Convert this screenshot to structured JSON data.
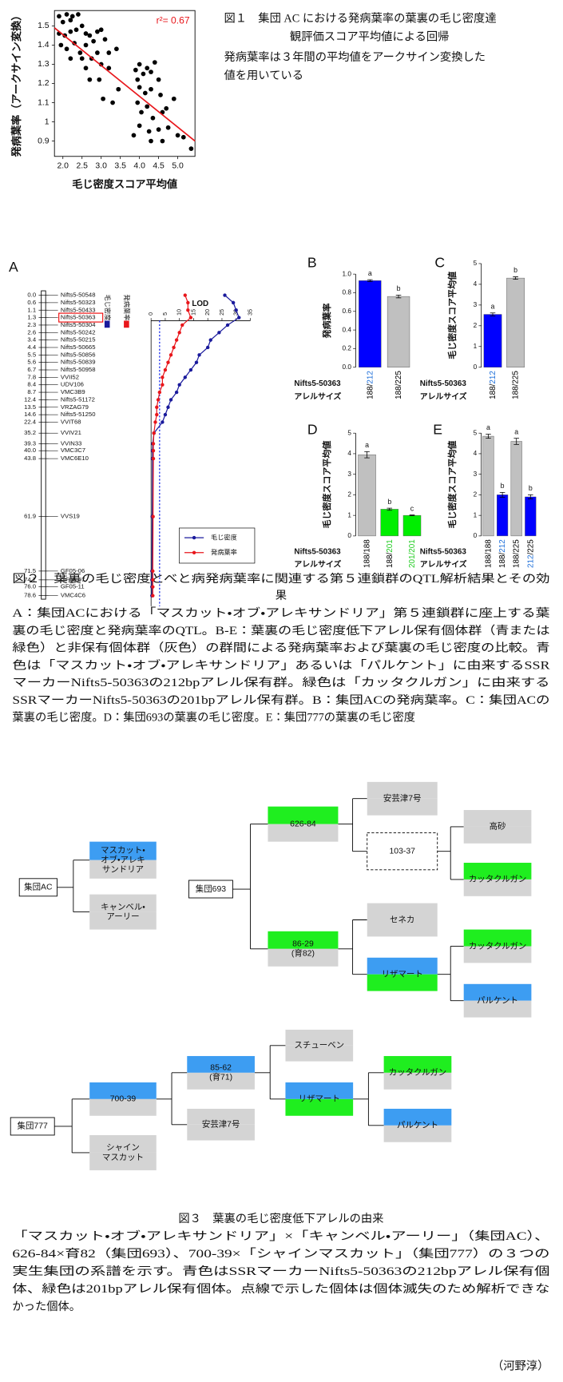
{
  "figure1": {
    "chart_data": {
      "type": "scatter",
      "xlabel": "毛じ密度スコア平均値",
      "ylabel": "発病葉率（アークサイン変換）",
      "x": [
        1.9,
        2.0,
        2.1,
        2.2,
        2.25,
        2.4,
        1.9,
        2.05,
        2.2,
        2.35,
        2.5,
        2.6,
        2.7,
        2.9,
        3.0,
        1.95,
        2.1,
        2.3,
        2.45,
        2.6,
        2.8,
        3.1,
        2.2,
        2.5,
        2.75,
        2.9,
        3.2,
        3.4,
        2.6,
        3.0,
        2.7,
        2.95,
        3.2,
        3.05,
        3.45,
        3.9,
        3.95,
        4.0,
        4.1,
        4.2,
        4.3,
        4.4,
        4.5,
        4.0,
        4.15,
        4.3,
        4.55,
        3.95,
        4.05,
        4.2,
        4.35,
        4.6,
        4.7,
        4.0,
        4.25,
        4.5,
        4.75,
        3.85,
        4.3,
        4.6,
        5.0,
        5.15,
        5.35,
        3.3,
        4.9
      ],
      "y": [
        1.55,
        1.52,
        1.56,
        1.53,
        1.55,
        1.56,
        1.46,
        1.45,
        1.47,
        1.48,
        1.5,
        1.46,
        1.45,
        1.47,
        1.48,
        1.4,
        1.38,
        1.41,
        1.36,
        1.4,
        1.42,
        1.43,
        1.33,
        1.33,
        1.33,
        1.36,
        1.36,
        1.38,
        1.28,
        1.3,
        1.22,
        1.22,
        1.28,
        1.12,
        1.17,
        1.27,
        1.22,
        1.3,
        1.25,
        1.28,
        1.26,
        1.31,
        1.22,
        1.18,
        1.15,
        1.17,
        1.14,
        1.1,
        1.05,
        1.08,
        1.02,
        1.05,
        1.07,
        0.98,
        0.95,
        0.96,
        0.97,
        0.93,
        0.9,
        0.9,
        0.93,
        0.92,
        0.86,
        1.1,
        1.12
      ],
      "color": "#000000",
      "fit": {
        "x": [
          1.78,
          5.45
        ],
        "y": [
          1.49,
          0.9
        ],
        "color": "#e8161b",
        "label": "r²= 0.67"
      },
      "xlim": [
        1.78,
        5.45
      ],
      "ylim": [
        0.82,
        1.58
      ],
      "xticks": [
        {
          "value": 2,
          "label": "2.0"
        },
        2.5,
        {
          "value": 3,
          "label": "3.0"
        },
        3.5,
        {
          "value": 4,
          "label": "4.0"
        },
        4.5,
        {
          "value": 5,
          "label": "5.0"
        }
      ],
      "yticks": [
        0.9,
        1,
        1.1,
        1.2,
        1.3,
        1.4,
        1.5
      ]
    },
    "caption": {
      "title": [
        "図１　集団 AC における発病葉率の葉裏の毛じ密度達",
        "観評価スコア平均値による回帰"
      ],
      "body": [
        "発病葉率は３年間の平均値をアークサイン変換した",
        "値を用いている"
      ]
    }
  },
  "figure2": {
    "panel_a": {
      "label": "A",
      "chart_data": {
        "type": "lod",
        "title": "LOD",
        "markers": [
          {
            "position": "0.0",
            "name": "Nifts5-50548"
          },
          {
            "position": "0.6",
            "name": "Nifts5-50323"
          },
          {
            "position": "1.1",
            "name": "Nifts5-50433"
          },
          {
            "position": "1.3",
            "name": "Nifts5-50363",
            "boxed": true
          },
          {
            "position": "2.3",
            "name": "Nifts5-50304"
          },
          {
            "position": "2.6",
            "name": "Nifts5-50242"
          },
          {
            "position": "3.4",
            "name": "Nifts5-50215"
          },
          {
            "position": "4.4",
            "name": "Nifts5-50665"
          },
          {
            "position": "5.5",
            "name": "Nifts5-50856"
          },
          {
            "position": "5.6",
            "name": "Nifts5-50839"
          },
          {
            "position": "6.7",
            "name": "Nifts5-50958"
          },
          {
            "position": "7.8",
            "name": "VVII52"
          },
          {
            "position": "8.4",
            "name": "UDV106"
          },
          {
            "position": "8.7",
            "name": "VMC3B9"
          },
          {
            "position": "12.4",
            "name": "Nifts5-51172"
          },
          {
            "position": "13.5",
            "name": "VRZAG79"
          },
          {
            "position": "14.6",
            "name": "Nifts5-51250"
          },
          {
            "position": "22.4",
            "name": "VVIT68"
          },
          {
            "position": "35.2",
            "name": "VVIV21"
          },
          {
            "position": "39.3",
            "name": "VVIN33"
          },
          {
            "position": "40.0",
            "name": "VMC3C7"
          },
          {
            "position": "43.8",
            "name": "VMC6E10"
          },
          {
            "position": "61.9",
            "name": "VVS19"
          },
          {
            "position": "71.5",
            "name": "GF05-06"
          },
          {
            "position": "74.7",
            "name": "GF05-07"
          },
          {
            "position": "76.0",
            "name": "GF05-11"
          },
          {
            "position": "78.6",
            "name": "VMC4C6"
          }
        ],
        "series": [
          {
            "name": "毛じ密度",
            "color": "#1a1a9c",
            "values": [
              26,
              29,
              30,
              31,
              27,
              24,
              21,
              20,
              17,
              16,
              14,
              12,
              10,
              9,
              7,
              6,
              5,
              4,
              1,
              0.6,
              0.5,
              0.5,
              0.4,
              0.3,
              0.3,
              0.3,
              0.3
            ]
          },
          {
            "name": "発病葉率",
            "color": "#e8161b",
            "values": [
              12,
              13,
              13,
              14,
              11,
              10,
              9,
              8,
              7,
              6,
              5,
              4,
              4,
              3,
              2.5,
              2,
              2,
              1.5,
              1,
              0.8,
              0.8,
              0.8,
              0.7,
              0.6,
              0.6,
              0.6,
              0.6
            ]
          }
        ],
        "threshold": 3,
        "threshold_color": "#2233ee",
        "xlim": [
          0,
          35
        ],
        "xticks": [
          0,
          5,
          10,
          15,
          20,
          25,
          30,
          35
        ]
      }
    },
    "panels": [
      {
        "label": "B",
        "chart_data": {
          "type": "bar",
          "ylabel": "発病葉率",
          "categories": [
            [
              "188/",
              "212"
            ],
            [
              "188/225"
            ]
          ],
          "category_colors": [
            [
              "#000000",
              "#1e6fd9"
            ],
            [
              "#000000"
            ]
          ],
          "values": [
            0.93,
            0.76
          ],
          "errors": [
            0.01,
            0.015
          ],
          "colors": [
            "#0000ff",
            "#c0c0c0"
          ],
          "letters": [
            "a",
            "b"
          ],
          "ylim": [
            0,
            1
          ],
          "yticks": [
            {
              "value": 0,
              "label": "0.0"
            },
            0.2,
            0.4,
            0.6,
            0.8,
            {
              "value": 1,
              "label": "1.0"
            }
          ],
          "marker_label": "Nifts5-50363",
          "allele_label": "アレルサイズ"
        }
      },
      {
        "label": "C",
        "chart_data": {
          "type": "bar",
          "ylabel": "毛じ密度スコア平均値",
          "categories": [
            [
              "188/",
              "212"
            ],
            [
              "188/225"
            ]
          ],
          "category_colors": [
            [
              "#000000",
              "#1e6fd9"
            ],
            [
              "#000000"
            ]
          ],
          "values": [
            2.55,
            4.3
          ],
          "errors": [
            0.07,
            0.06
          ],
          "colors": [
            "#0000ff",
            "#c0c0c0"
          ],
          "letters": [
            "a",
            "b"
          ],
          "ylim": [
            0,
            5
          ],
          "yticks": [
            0,
            1,
            2,
            3,
            4,
            5
          ],
          "marker_label": "Nifts5-50363",
          "allele_label": "アレルサイズ"
        }
      },
      {
        "label": "D",
        "chart_data": {
          "type": "bar",
          "ylabel": "毛じ密度スコア平均値",
          "categories": [
            [
              "188/188"
            ],
            [
              "188/",
              "201"
            ],
            [
              "201/201"
            ]
          ],
          "category_colors": [
            [
              "#000000"
            ],
            [
              "#000000",
              "#22cc22"
            ],
            [
              "#22cc22"
            ]
          ],
          "values": [
            3.95,
            1.3,
            1.0
          ],
          "errors": [
            0.15,
            0.05,
            0.02
          ],
          "colors": [
            "#c0c0c0",
            "#00ee00",
            "#00ee00"
          ],
          "letters": [
            "a",
            "b",
            "c"
          ],
          "ylim": [
            0,
            5
          ],
          "yticks": [
            0,
            1,
            2,
            3,
            4,
            5
          ],
          "marker_label": "Nifts5-50363",
          "allele_label": "アレルサイズ"
        }
      },
      {
        "label": "E",
        "chart_data": {
          "type": "bar",
          "ylabel": "毛じ密度スコア平均値",
          "categories": [
            [
              "188/188"
            ],
            [
              "188/",
              "212"
            ],
            [
              "188/225"
            ],
            [
              "212",
              "/225"
            ]
          ],
          "category_colors": [
            [
              "#000000"
            ],
            [
              "#000000",
              "#1e6fd9"
            ],
            [
              "#000000"
            ],
            [
              "#1e6fd9",
              "#000000"
            ]
          ],
          "values": [
            4.85,
            2.0,
            4.6,
            1.9
          ],
          "errors": [
            0.1,
            0.12,
            0.15,
            0.1
          ],
          "colors": [
            "#c0c0c0",
            "#0000ff",
            "#c0c0c0",
            "#0000ff"
          ],
          "letters": [
            "a",
            "b",
            "a",
            "b"
          ],
          "ylim": [
            0,
            5
          ],
          "yticks": [
            0,
            1,
            2,
            3,
            4,
            5
          ],
          "marker_label": "Nifts5-50363",
          "allele_label": "アレルサイズ"
        }
      }
    ],
    "caption": {
      "title": [
        "図２　葉裏の毛じ密度とべと病発病葉率に関連する第５連鎖群のQTL解析結果とその効",
        "果"
      ],
      "body": [
        "A：集団ACにおける「マスカット・オブ・アレキサンドリア」第５連鎖群に座上する葉",
        "裏の毛じ密度と発病葉率のQTL。B-E：葉裏の毛じ密度低下アレル保有個体群（青または",
        "緑色）と非保有個体群（灰色）の群間による発病葉率および葉裏の毛じ密度の比較。青",
        "色は「マスカット・オブ・アレキサンドリア」あるいは「パルケント」に由来するSSR",
        "マーカーNifts5-50363の212bpアレル保有群。緑色は「カッタクルガン」に由来する",
        "SSRマーカーNifts5-50363の201bpアレル保有群。B：集団ACの発病葉率。C：集団ACの",
        "葉裏の毛じ密度。D：集団693の葉裏の毛じ密度。E：集団777の葉裏の毛じ密度"
      ]
    }
  },
  "figure3": {
    "nodes": [
      {
        "label": [
          "集団AC"
        ],
        "top": "#ffffff",
        "bottom": "#ffffff",
        "border": "solid"
      },
      {
        "label": [
          "マスカット・",
          "オブ・アレキ",
          "サンドリア"
        ],
        "top": "#3d9df2",
        "bottom": "#d4d4d4"
      },
      {
        "label": [
          "キャンベル・",
          "アーリー"
        ],
        "top": "#d4d4d4",
        "bottom": "#d4d4d4"
      },
      {
        "label": [
          "集団693"
        ],
        "top": "#ffffff",
        "bottom": "#ffffff",
        "border": "solid"
      },
      {
        "label": [
          "626-84"
        ],
        "top": "#1fee1f",
        "bottom": "#d4d4d4"
      },
      {
        "label": [
          "86-29",
          "(育82)"
        ],
        "top": "#1fee1f",
        "bottom": "#d4d4d4"
      },
      {
        "label": [
          "安芸津7号"
        ],
        "top": "#d4d4d4",
        "bottom": "#d4d4d4"
      },
      {
        "label": [
          "103-37"
        ],
        "top": "#ffffff",
        "bottom": "#ffffff",
        "border": "dashed"
      },
      {
        "label": [
          "高砂"
        ],
        "top": "#d4d4d4",
        "bottom": "#d4d4d4"
      },
      {
        "label": [
          "カッタクルガン"
        ],
        "top": "#1fee1f",
        "bottom": "#d4d4d4"
      },
      {
        "label": [
          "セネカ"
        ],
        "top": "#d4d4d4",
        "bottom": "#d4d4d4"
      },
      {
        "label": [
          "リザマート"
        ],
        "top": "#3d9df2",
        "bottom": "#1fee1f"
      },
      {
        "label": [
          "カッタクルガン"
        ],
        "top": "#1fee1f",
        "bottom": "#d4d4d4"
      },
      {
        "label": [
          "パルケント"
        ],
        "top": "#3d9df2",
        "bottom": "#d4d4d4"
      },
      {
        "label": [
          "集団777"
        ],
        "top": "#ffffff",
        "bottom": "#ffffff",
        "border": "solid"
      },
      {
        "label": [
          "700-39"
        ],
        "top": "#3d9df2",
        "bottom": "#d4d4d4"
      },
      {
        "label": [
          "シャイン",
          "マスカット"
        ],
        "top": "#d4d4d4",
        "bottom": "#d4d4d4"
      },
      {
        "label": [
          "85-62",
          "(育71)"
        ],
        "top": "#3d9df2",
        "bottom": "#d4d4d4"
      },
      {
        "label": [
          "安芸津7号"
        ],
        "top": "#d4d4d4",
        "bottom": "#d4d4d4"
      },
      {
        "label": [
          "スチューベン"
        ],
        "top": "#d4d4d4",
        "bottom": "#d4d4d4"
      },
      {
        "label": [
          "リザマート"
        ],
        "top": "#3d9df2",
        "bottom": "#1fee1f"
      },
      {
        "label": [
          "カッタクルガン"
        ],
        "top": "#1fee1f",
        "bottom": "#d4d4d4"
      },
      {
        "label": [
          "パルケント"
        ],
        "top": "#3d9df2",
        "bottom": "#d4d4d4"
      }
    ],
    "caption": {
      "title": [
        "図３　葉裏の毛じ密度低下アレルの由来"
      ],
      "body": [
        "「マスカット・オブ・アレキサンドリア」×「キャンベル・アーリー」（集団AC）、",
        "626-84×育82（集団693）、700-39×「シャインマスカット」（集団777）の３つの",
        "実生集団の系譜を示す。青色はSSRマーカーNifts5-50363の212bpアレル保有個",
        "体、緑色は201bpアレル保有個体。点線で示した個体は個体滅失のため解析できな",
        "かった個体。"
      ]
    }
  },
  "author": "（河野淳）"
}
